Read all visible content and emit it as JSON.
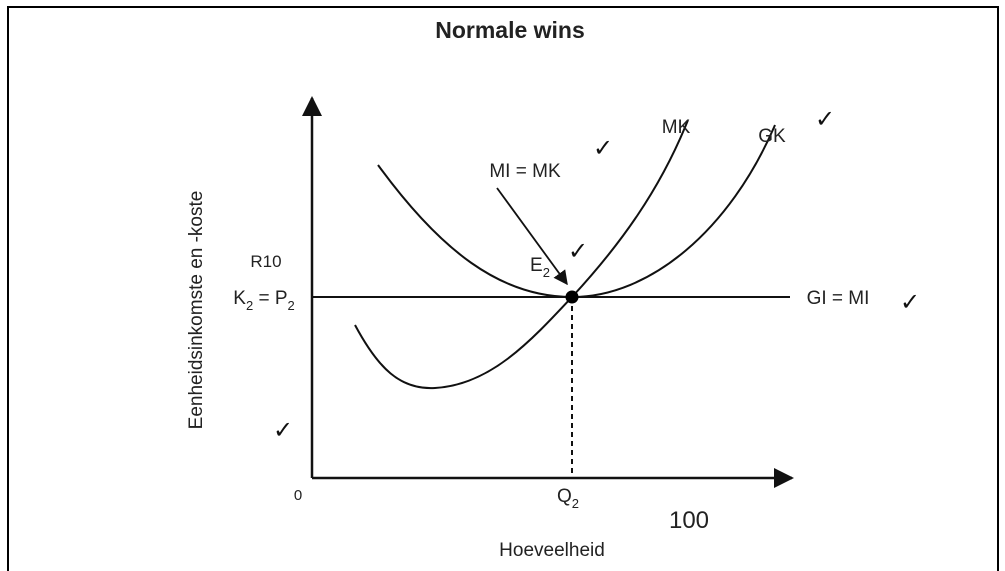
{
  "title": "Normale wins",
  "axes": {
    "y_label": "Eenheidsinkomste en -koste",
    "x_label": "Hoeveelheid",
    "origin": "0"
  },
  "labels": {
    "r10": "R10",
    "k2_p2": [
      "K",
      "2",
      " = P",
      "2"
    ],
    "q2": [
      "Q",
      "2"
    ],
    "hundred": "100",
    "mi_mk": "MI = MK",
    "mk": "MK",
    "gk": "GK",
    "e2": [
      "E",
      "2"
    ],
    "gi_mi": "GI = MI"
  },
  "checks": [
    "✓",
    "✓",
    "✓",
    "✓",
    "✓"
  ]
}
